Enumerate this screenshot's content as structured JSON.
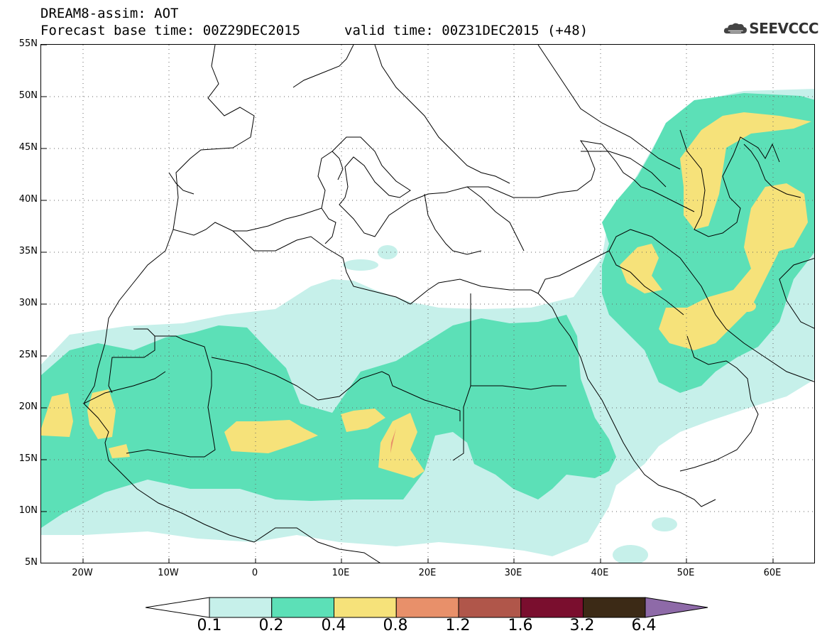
{
  "header": {
    "title": "DREAM8-assim: AOT",
    "base_time": "Forecast base time: 00Z29DEC2015",
    "valid_time": "valid time: 00Z31DEC2015 (+48)"
  },
  "logo": {
    "text": "SEEVCCC",
    "icon": "cloud-icon"
  },
  "map": {
    "lat_labels": [
      "55N",
      "50N",
      "45N",
      "40N",
      "35N",
      "30N",
      "25N",
      "20N",
      "15N",
      "10N",
      "5N"
    ],
    "lon_labels": [
      "20W",
      "10W",
      "0",
      "10E",
      "20E",
      "30E",
      "40E",
      "50E",
      "60E"
    ]
  },
  "legend": {
    "labels": [
      "0.1",
      "0.2",
      "0.4",
      "0.8",
      "1.2",
      "1.6",
      "3.2",
      "6.4"
    ],
    "colors": [
      "#c6f0ea",
      "#5ce0b7",
      "#f6e27a",
      "#e8906a",
      "#b0564a",
      "#7a0e2e",
      "#3c2a16",
      "#8e6aa8"
    ]
  }
}
